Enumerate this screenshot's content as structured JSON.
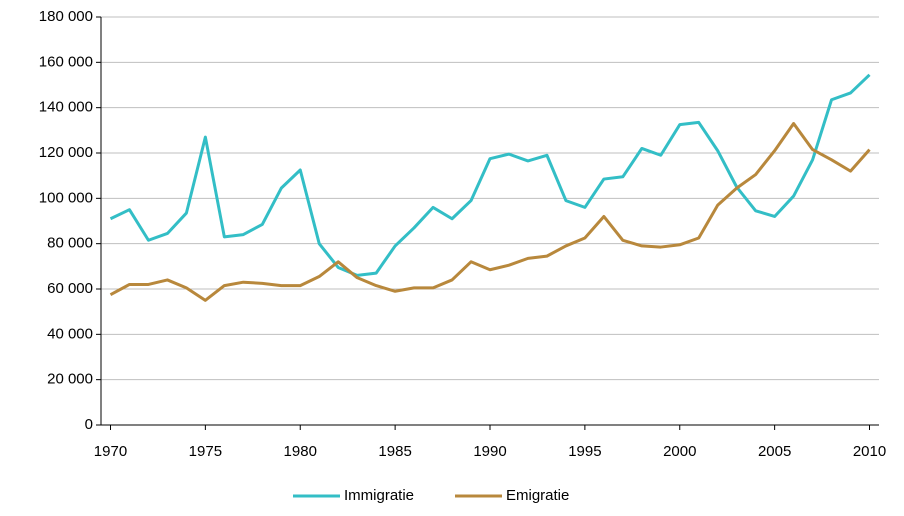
{
  "chart_data": {
    "type": "line",
    "x": [
      1970,
      1971,
      1972,
      1973,
      1974,
      1975,
      1976,
      1977,
      1978,
      1979,
      1980,
      1981,
      1982,
      1983,
      1984,
      1985,
      1986,
      1987,
      1988,
      1989,
      1990,
      1991,
      1992,
      1993,
      1994,
      1995,
      1996,
      1997,
      1998,
      1999,
      2000,
      2001,
      2002,
      2003,
      2004,
      2005,
      2006,
      2007,
      2008,
      2009,
      2010
    ],
    "series": [
      {
        "name": "Immigratie",
        "color": "#33bec6",
        "values": [
          91000,
          95000,
          81500,
          84500,
          93500,
          127000,
          83000,
          84000,
          88500,
          104500,
          112500,
          80000,
          69500,
          66000,
          67000,
          79000,
          87000,
          96000,
          91000,
          99000,
          117500,
          119500,
          116500,
          119000,
          99000,
          96000,
          108500,
          109500,
          122000,
          119000,
          132500,
          133500,
          121000,
          105000,
          94500,
          92000,
          101000,
          117000,
          143500,
          146500,
          154500
        ]
      },
      {
        "name": "Emigratie",
        "color": "#b8883c",
        "values": [
          57500,
          62000,
          62000,
          64000,
          60500,
          55000,
          61500,
          63000,
          62500,
          61500,
          61500,
          65500,
          72000,
          65000,
          61500,
          59000,
          60500,
          60500,
          64000,
          72000,
          68500,
          70500,
          73500,
          74500,
          79000,
          82500,
          92000,
          81500,
          79000,
          78500,
          79500,
          82500,
          97000,
          104500,
          110500,
          121000,
          133000,
          121500,
          117000,
          112000,
          121500
        ]
      }
    ],
    "xlim": [
      1969.5,
      2010.5
    ],
    "xticks": [
      1970,
      1975,
      1980,
      1985,
      1990,
      1995,
      2000,
      2005,
      2010
    ],
    "ylim": [
      0,
      180000
    ],
    "yticks": [
      0,
      {
        "value": 20000,
        "label": "20 000"
      },
      {
        "value": 40000,
        "label": "40 000"
      },
      {
        "value": 60000,
        "label": "60 000"
      },
      {
        "value": 80000,
        "label": "80 000"
      },
      {
        "value": 100000,
        "label": "100 000"
      },
      {
        "value": 120000,
        "label": "120 000"
      },
      {
        "value": 140000,
        "label": "140 000"
      },
      {
        "value": 160000,
        "label": "160 000"
      },
      {
        "value": 180000,
        "label": "180 000"
      }
    ],
    "grid": true,
    "legend": "bottom"
  }
}
